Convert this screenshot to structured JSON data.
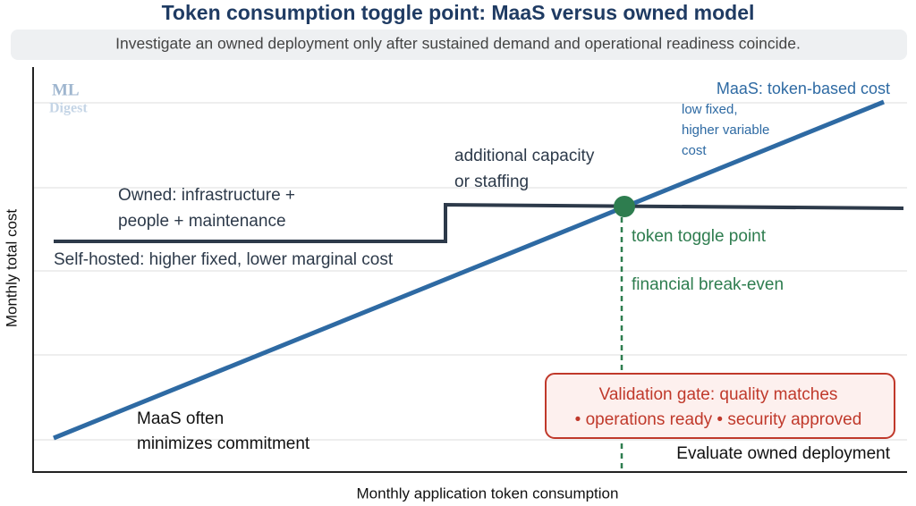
{
  "header": {
    "title": "Token consumption toggle point: MaaS versus owned model",
    "subtitle": "Investigate an owned deployment only after sustained demand and operational readiness coincide."
  },
  "logo": {
    "line1": "ML",
    "line2": "Digest"
  },
  "axes": {
    "y_label": "Monthly total cost",
    "x_label": "Monthly application token consumption"
  },
  "annotations": {
    "maas_title": "MaaS: token-based cost",
    "maas_detail": [
      "low fixed,",
      "higher variable",
      "cost"
    ],
    "step": [
      "additional capacity",
      "or staffing"
    ],
    "owned": [
      "Owned: infrastructure +",
      "people + maintenance"
    ],
    "self_hosted": "Self-hosted: higher fixed, lower marginal cost",
    "toggle": "token toggle point",
    "break_even": "financial break-even",
    "gate": [
      "Validation gate: quality matches",
      "• operations ready • security approved"
    ],
    "maas_note": [
      "MaaS often",
      "minimizes commitment"
    ],
    "evaluate": "Evaluate owned deployment"
  }
}
